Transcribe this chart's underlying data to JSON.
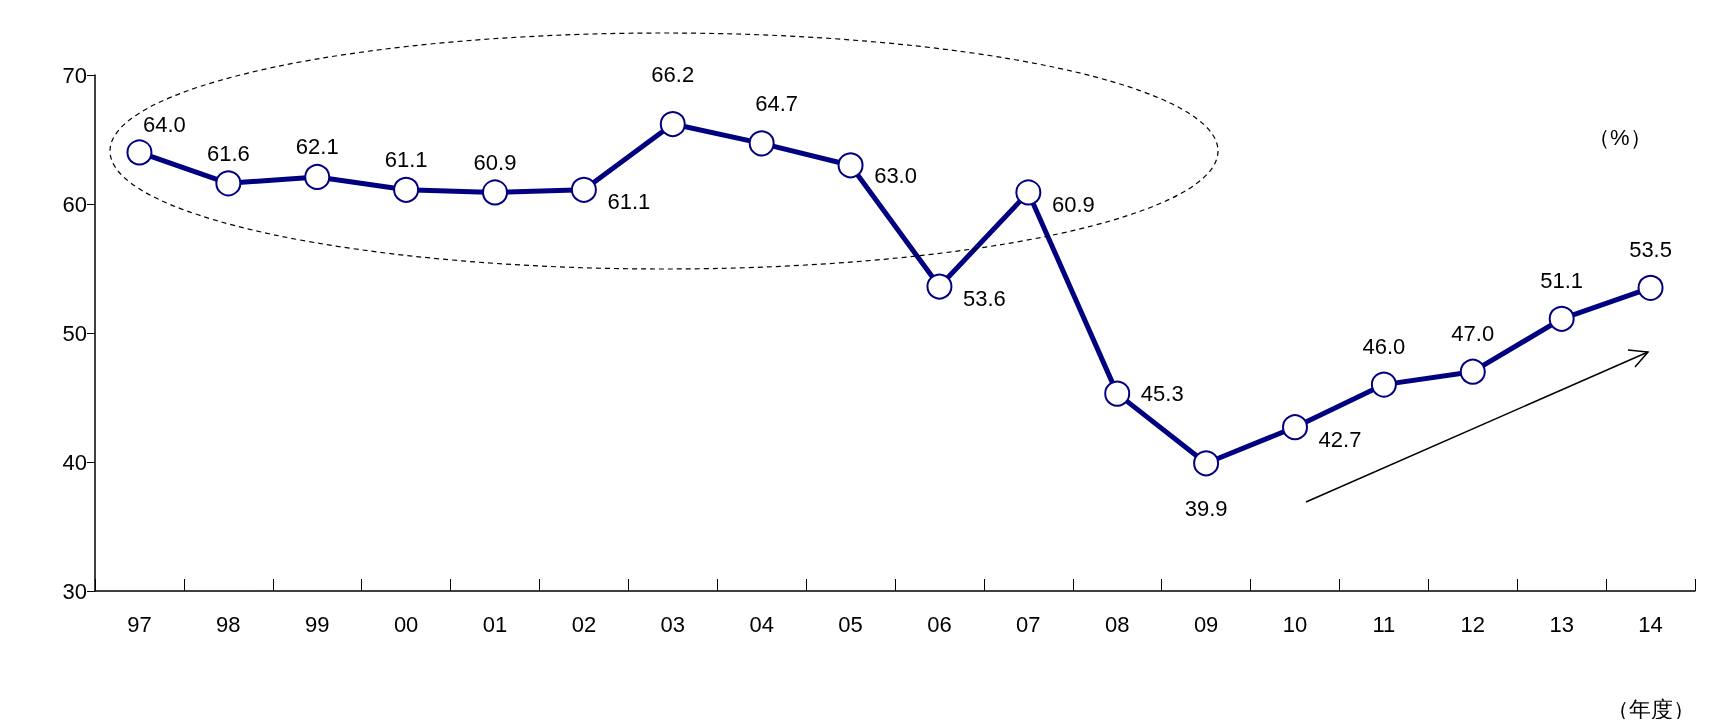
{
  "chart_data": {
    "type": "line",
    "xlabel": "（年度）",
    "ylabel": "（%）",
    "categories": [
      "97",
      "98",
      "99",
      "00",
      "01",
      "02",
      "03",
      "04",
      "05",
      "06",
      "07",
      "08",
      "09",
      "10",
      "11",
      "12",
      "13",
      "14"
    ],
    "series": [
      {
        "color": "#000080",
        "values": [
          64.0,
          61.6,
          62.1,
          61.1,
          60.9,
          61.1,
          66.2,
          64.7,
          63.0,
          53.6,
          60.9,
          45.3,
          39.9,
          42.7,
          46.0,
          47.0,
          51.1,
          53.5
        ],
        "value_labels": [
          "64.0",
          "61.6",
          "62.1",
          "61.1",
          "60.9",
          "61.1",
          "66.2",
          "64.7",
          "63.0",
          "53.6",
          "60.9",
          "45.3",
          "39.9",
          "42.7",
          "46.0",
          "47.0",
          "51.1",
          "53.5"
        ]
      }
    ],
    "ylim": [
      30,
      70
    ],
    "yticks": [
      30,
      40,
      50,
      60,
      70
    ],
    "grid": false,
    "marker": "circle",
    "line_style": "solid"
  }
}
